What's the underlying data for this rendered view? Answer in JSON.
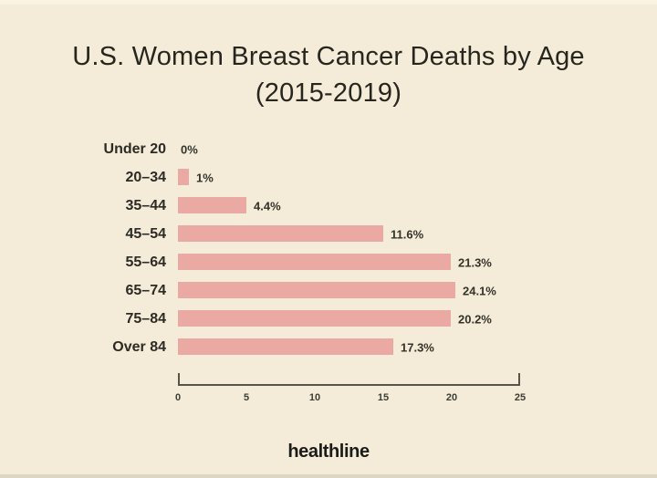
{
  "page": {
    "background_color": "#f4ecd9"
  },
  "title": {
    "line1": "U.S. Women Breast Cancer Deaths by Age",
    "line2": "(2015-2019)"
  },
  "branding": {
    "wordmark": "healthline"
  },
  "chart_data": {
    "type": "bar",
    "orientation": "horizontal",
    "title": "U.S. Women Breast Cancer Deaths by Age (2015-2019)",
    "categories": [
      "Under 20",
      "20–34",
      "35–44",
      "45–54",
      "55–64",
      "65–74",
      "75–84",
      "Over 84"
    ],
    "values": [
      0,
      1,
      4.4,
      11.6,
      21.3,
      24.1,
      20.2,
      17.3
    ],
    "value_labels": [
      "0%",
      "1%",
      "4.4%",
      "11.6%",
      "21.3%",
      "24.1%",
      "20.2%",
      "17.3%"
    ],
    "xlabel": "",
    "ylabel": "",
    "xlim": [
      0,
      25
    ],
    "x_ticks": [
      0,
      5,
      10,
      15,
      20,
      25
    ],
    "grid": false,
    "legend": false,
    "bar_color": "#eba9a3",
    "axis_color": "#55544a",
    "display_bar_pct_of_axis": [
      0,
      3.3,
      20.1,
      59.9,
      79.7,
      81.0,
      79.7,
      62.8
    ]
  }
}
